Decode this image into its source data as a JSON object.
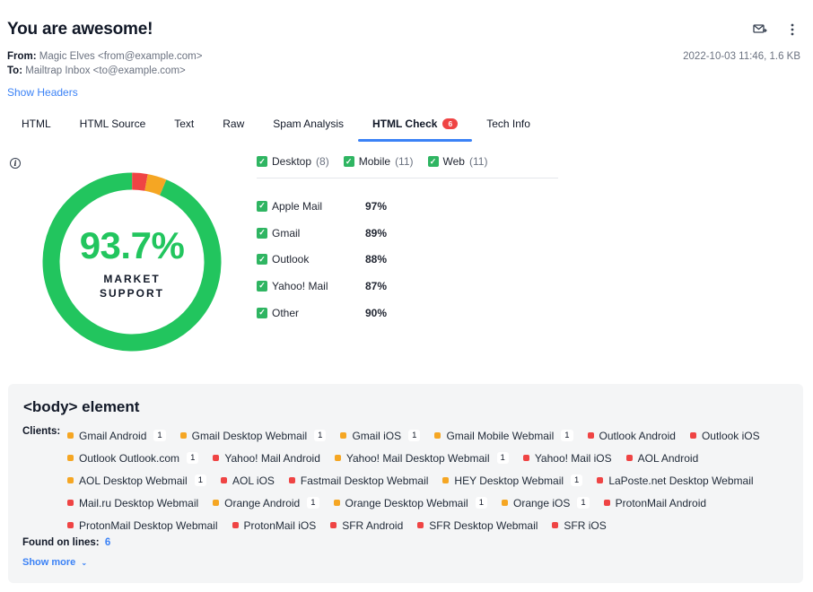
{
  "email": {
    "subject": "You are awesome!",
    "from_label": "From:",
    "from_value": "Magic Elves <from@example.com>",
    "to_label": "To:",
    "to_value": "Mailtrap Inbox <to@example.com>",
    "date_size": "2022-10-03 11:46, 1.6 KB",
    "show_headers": "Show Headers"
  },
  "tabs": [
    {
      "label": "HTML"
    },
    {
      "label": "HTML Source"
    },
    {
      "label": "Text"
    },
    {
      "label": "Raw"
    },
    {
      "label": "Spam Analysis"
    },
    {
      "label": "HTML Check",
      "badge": "6",
      "active": true
    },
    {
      "label": "Tech Info"
    }
  ],
  "icons": {
    "forward": "forward-mail-icon",
    "more": "more-vertical-icon",
    "info": "info-icon"
  },
  "support": {
    "percent": "93.7%",
    "label_line1": "MARKET",
    "label_line2": "SUPPORT",
    "segments": [
      {
        "status": "supported",
        "fraction": 0.937,
        "color": "#22c55e"
      },
      {
        "status": "unsupported",
        "fraction": 0.028,
        "color": "#ef4444"
      },
      {
        "status": "partial",
        "fraction": 0.035,
        "color": "#f5a623"
      }
    ]
  },
  "filters": [
    {
      "label": "Desktop",
      "count": "(8)"
    },
    {
      "label": "Mobile",
      "count": "(11)"
    },
    {
      "label": "Web",
      "count": "(11)"
    }
  ],
  "clients": [
    {
      "name": "Apple Mail",
      "percent": "97%"
    },
    {
      "name": "Gmail",
      "percent": "89%"
    },
    {
      "name": "Outlook",
      "percent": "88%"
    },
    {
      "name": "Yahoo! Mail",
      "percent": "87%"
    },
    {
      "name": "Other",
      "percent": "90%"
    }
  ],
  "element": {
    "title": "<body> element",
    "clients_label": "Clients:",
    "found_label": "Found on lines:",
    "found_value": "6",
    "show_more": "Show more"
  },
  "colors": {
    "unsupported": "#ef4444",
    "partial": "#f5a623",
    "accent": "#3b82f6",
    "supported": "#22c55e"
  },
  "chip_rows": [
    [
      {
        "name": "Gmail Android",
        "status": "partial",
        "num": "1"
      },
      {
        "name": "Gmail Desktop Webmail",
        "status": "partial",
        "num": "1"
      },
      {
        "name": "Gmail iOS",
        "status": "partial",
        "num": "1"
      },
      {
        "name": "Gmail Mobile Webmail",
        "status": "partial",
        "num": "1"
      },
      {
        "name": "Outlook Android",
        "status": "unsupported"
      },
      {
        "name": "Outlook iOS",
        "status": "unsupported"
      }
    ],
    [
      {
        "name": "Outlook Outlook.com",
        "status": "partial",
        "num": "1"
      },
      {
        "name": "Yahoo! Mail Android",
        "status": "unsupported"
      },
      {
        "name": "Yahoo! Mail Desktop Webmail",
        "status": "partial",
        "num": "1"
      },
      {
        "name": "Yahoo! Mail iOS",
        "status": "unsupported"
      },
      {
        "name": "AOL Android",
        "status": "unsupported"
      }
    ],
    [
      {
        "name": "AOL Desktop Webmail",
        "status": "partial",
        "num": "1"
      },
      {
        "name": "AOL iOS",
        "status": "unsupported"
      },
      {
        "name": "Fastmail Desktop Webmail",
        "status": "unsupported"
      },
      {
        "name": "HEY Desktop Webmail",
        "status": "partial",
        "num": "1"
      },
      {
        "name": "LaPoste.net Desktop Webmail",
        "status": "unsupported"
      }
    ],
    [
      {
        "name": "Mail.ru Desktop Webmail",
        "status": "unsupported"
      },
      {
        "name": "Orange Android",
        "status": "partial",
        "num": "1"
      },
      {
        "name": "Orange Desktop Webmail",
        "status": "partial",
        "num": "1"
      },
      {
        "name": "Orange iOS",
        "status": "partial",
        "num": "1"
      },
      {
        "name": "ProtonMail Android",
        "status": "unsupported"
      }
    ],
    [
      {
        "name": "ProtonMail Desktop Webmail",
        "status": "unsupported"
      },
      {
        "name": "ProtonMail iOS",
        "status": "unsupported"
      },
      {
        "name": "SFR Android",
        "status": "unsupported"
      },
      {
        "name": "SFR Desktop Webmail",
        "status": "unsupported"
      },
      {
        "name": "SFR iOS",
        "status": "unsupported"
      }
    ]
  ]
}
